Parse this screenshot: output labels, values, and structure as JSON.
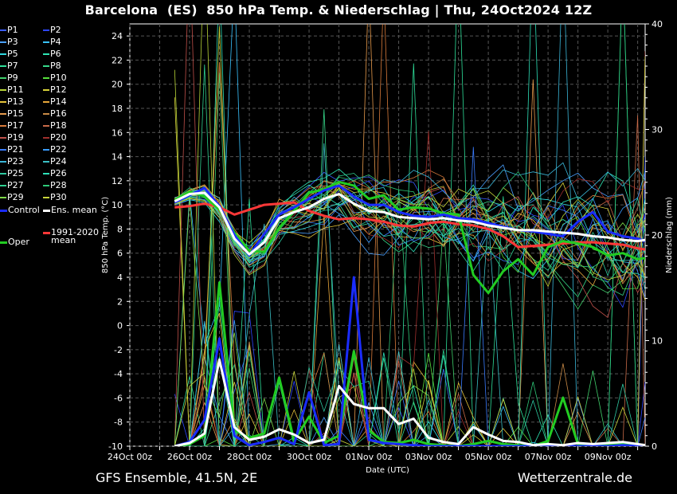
{
  "title": "Barcelona  (ES)  850 hPa Temp. & Niederschlag | Thu, 24Oct2024 12Z",
  "footer_left": "GFS Ensemble, 41.5N, 2E",
  "footer_right": "Wetterzentrale.de",
  "colors": {
    "background": "#000000",
    "grid": "#555555",
    "control": "#1a2cff",
    "ens_mean": "#ffffff",
    "climate_mean": "#ff3838",
    "oper": "#22cc22"
  },
  "legend": {
    "members": [
      {
        "label": "P1",
        "color": "#3a5cff"
      },
      {
        "label": "P2",
        "color": "#2d46ff"
      },
      {
        "label": "P3",
        "color": "#4aa0ff"
      },
      {
        "label": "P4",
        "color": "#39c3ff"
      },
      {
        "label": "P5",
        "color": "#2fd8e0"
      },
      {
        "label": "P6",
        "color": "#2ee6b4"
      },
      {
        "label": "P7",
        "color": "#2ee09a"
      },
      {
        "label": "P8",
        "color": "#36d88a"
      },
      {
        "label": "P9",
        "color": "#3fd06b"
      },
      {
        "label": "P10",
        "color": "#56e03c"
      },
      {
        "label": "P11",
        "color": "#b8d437"
      },
      {
        "label": "P12",
        "color": "#d8d23a"
      },
      {
        "label": "P13",
        "color": "#e6c43a"
      },
      {
        "label": "P14",
        "color": "#e6a63a"
      },
      {
        "label": "P15",
        "color": "#e69a4c"
      },
      {
        "label": "P16",
        "color": "#c98a46"
      },
      {
        "label": "P17",
        "color": "#d87a3a"
      },
      {
        "label": "P18",
        "color": "#c76a48"
      },
      {
        "label": "P19",
        "color": "#c0504a"
      },
      {
        "label": "P20",
        "color": "#a0302e"
      },
      {
        "label": "P21",
        "color": "#3a7cff"
      },
      {
        "label": "P22",
        "color": "#3a9cff"
      },
      {
        "label": "P23",
        "color": "#3ab6d8"
      },
      {
        "label": "P24",
        "color": "#3ac0c6"
      },
      {
        "label": "P25",
        "color": "#2ec8a0"
      },
      {
        "label": "P26",
        "color": "#2ee0b8"
      },
      {
        "label": "P27",
        "color": "#2ed090"
      },
      {
        "label": "P28",
        "color": "#2ec878"
      },
      {
        "label": "P29",
        "color": "#7cd848"
      },
      {
        "label": "P30",
        "color": "#c8d43a"
      }
    ],
    "control_label": "Control",
    "ens_mean_label": "Ens. mean",
    "oper_label": "Oper",
    "climate_label_1": "1991-2020",
    "climate_label_2": "mean"
  },
  "chart_data": {
    "type": "line",
    "xlabel": "Date (UTC)",
    "ylabel": "850 hPa Temp. (°C)",
    "y2label": "Niederschlag (mm)",
    "ylim": [
      -10,
      25
    ],
    "y2lim": [
      0,
      40
    ],
    "yticks": [
      -10,
      -8,
      -6,
      -4,
      -2,
      0,
      2,
      4,
      6,
      8,
      10,
      12,
      14,
      16,
      18,
      20,
      22,
      24
    ],
    "y2ticks": [
      0,
      10,
      20,
      30,
      40
    ],
    "xlim": [
      "2024-10-24 00:00",
      "2024-11-10 06:00"
    ],
    "xticks": [
      "24Oct 00z",
      "26Oct 00z",
      "28Oct 00z",
      "30Oct 00z",
      "01Nov 00z",
      "03Nov 00z",
      "05Nov 00z",
      "07Nov 00z",
      "09Nov 00z"
    ],
    "grid": true,
    "legend_position": "left, outside plot",
    "temperature_series": [
      {
        "name": "Ens. mean",
        "x": [
          "2024-10-25 12:00",
          "2024-10-26 00:00",
          "2024-10-26 12:00",
          "2024-10-27 00:00",
          "2024-10-27 12:00",
          "2024-10-28 00:00",
          "2024-10-28 12:00",
          "2024-10-29 00:00",
          "2024-10-29 12:00",
          "2024-10-30 00:00",
          "2024-10-30 12:00",
          "2024-10-31 00:00",
          "2024-10-31 12:00",
          "2024-11-01 00:00",
          "2024-11-01 12:00",
          "2024-11-02 00:00",
          "2024-11-02 12:00",
          "2024-11-03 00:00",
          "2024-11-03 12:00",
          "2024-11-04 00:00",
          "2024-11-04 12:00",
          "2024-11-05 00:00",
          "2024-11-05 12:00",
          "2024-11-06 00:00",
          "2024-11-06 12:00",
          "2024-11-07 00:00",
          "2024-11-07 12:00",
          "2024-11-08 00:00",
          "2024-11-08 12:00",
          "2024-11-09 00:00",
          "2024-11-09 12:00",
          "2024-11-10 00:00",
          "2024-11-10 06:00"
        ],
        "values": [
          10.3,
          10.9,
          11.0,
          9.8,
          7.2,
          5.9,
          6.9,
          8.9,
          9.4,
          9.8,
          10.5,
          10.9,
          10.1,
          9.5,
          9.4,
          9.0,
          8.9,
          8.8,
          8.9,
          8.7,
          8.6,
          8.3,
          8.1,
          7.9,
          7.9,
          7.8,
          7.7,
          7.6,
          7.4,
          7.3,
          7.1,
          7.0,
          7.1
        ]
      },
      {
        "name": "Control",
        "x": [
          "2024-10-25 12:00",
          "2024-10-26 00:00",
          "2024-10-26 12:00",
          "2024-10-27 00:00",
          "2024-10-27 12:00",
          "2024-10-28 00:00",
          "2024-10-28 12:00",
          "2024-10-29 00:00",
          "2024-10-29 12:00",
          "2024-10-30 00:00",
          "2024-10-30 12:00",
          "2024-10-31 00:00",
          "2024-10-31 12:00",
          "2024-11-01 00:00",
          "2024-11-01 12:00",
          "2024-11-02 00:00",
          "2024-11-02 12:00",
          "2024-11-03 00:00",
          "2024-11-03 12:00",
          "2024-11-04 00:00",
          "2024-11-04 12:00",
          "2024-11-05 00:00",
          "2024-11-05 12:00",
          "2024-11-06 00:00",
          "2024-11-06 12:00",
          "2024-11-07 00:00",
          "2024-11-07 12:00",
          "2024-11-08 00:00",
          "2024-11-08 12:00",
          "2024-11-09 00:00",
          "2024-11-09 12:00",
          "2024-11-10 00:00",
          "2024-11-10 06:00"
        ],
        "values": [
          10.2,
          10.8,
          11.4,
          9.9,
          7.5,
          5.8,
          7.6,
          9.2,
          9.8,
          10.5,
          11.2,
          11.6,
          10.7,
          10.0,
          10.0,
          9.4,
          9.1,
          9.0,
          9.2,
          8.9,
          8.8,
          8.5,
          8.2,
          7.9,
          7.8,
          7.6,
          7.4,
          8.6,
          9.4,
          7.8,
          7.4,
          7.2,
          7.0
        ]
      },
      {
        "name": "Oper",
        "x": [
          "2024-10-25 12:00",
          "2024-10-26 00:00",
          "2024-10-26 12:00",
          "2024-10-27 00:00",
          "2024-10-27 12:00",
          "2024-10-28 00:00",
          "2024-10-28 12:00",
          "2024-10-29 00:00",
          "2024-10-29 12:00",
          "2024-10-30 00:00",
          "2024-10-30 12:00",
          "2024-10-31 00:00",
          "2024-10-31 12:00",
          "2024-11-01 00:00",
          "2024-11-01 12:00",
          "2024-11-02 00:00",
          "2024-11-02 12:00",
          "2024-11-03 00:00",
          "2024-11-03 12:00",
          "2024-11-04 00:00",
          "2024-11-04 12:00",
          "2024-11-05 00:00",
          "2024-11-05 12:00",
          "2024-11-06 00:00",
          "2024-11-06 12:00",
          "2024-11-07 00:00",
          "2024-11-07 12:00",
          "2024-11-08 00:00",
          "2024-11-08 12:00",
          "2024-11-09 00:00",
          "2024-11-09 12:00",
          "2024-11-10 00:00",
          "2024-11-10 06:00"
        ],
        "values": [
          10.4,
          11.1,
          10.7,
          9.6,
          7.7,
          6.2,
          6.1,
          8.1,
          9.5,
          11.0,
          11.3,
          11.9,
          11.6,
          10.5,
          10.8,
          9.6,
          9.8,
          9.7,
          9.3,
          9.2,
          4.2,
          2.7,
          4.5,
          5.5,
          4.2,
          6.5,
          7.0,
          6.8,
          6.5,
          5.8,
          6.0,
          5.5,
          5.6
        ]
      },
      {
        "name": "1991-2020 mean",
        "x": [
          "2024-10-25 12:00",
          "2024-10-26 00:00",
          "2024-10-26 12:00",
          "2024-10-27 00:00",
          "2024-10-27 12:00",
          "2024-10-28 00:00",
          "2024-10-28 12:00",
          "2024-10-29 00:00",
          "2024-10-29 12:00",
          "2024-10-30 00:00",
          "2024-10-30 12:00",
          "2024-10-31 00:00",
          "2024-10-31 12:00",
          "2024-11-01 00:00",
          "2024-11-01 12:00",
          "2024-11-02 00:00",
          "2024-11-02 12:00",
          "2024-11-03 00:00",
          "2024-11-03 12:00",
          "2024-11-04 00:00",
          "2024-11-04 12:00",
          "2024-11-05 00:00",
          "2024-11-05 12:00",
          "2024-11-06 00:00",
          "2024-11-06 12:00",
          "2024-11-07 00:00",
          "2024-11-07 12:00",
          "2024-11-08 00:00",
          "2024-11-08 12:00",
          "2024-11-09 00:00",
          "2024-11-09 12:00",
          "2024-11-10 00:00",
          "2024-11-10 06:00"
        ],
        "values": [
          9.8,
          9.9,
          10.1,
          9.8,
          9.2,
          9.6,
          10.0,
          10.1,
          10.2,
          9.5,
          9.1,
          8.8,
          8.9,
          8.8,
          8.6,
          8.3,
          8.2,
          8.5,
          8.6,
          8.4,
          8.3,
          8.0,
          7.4,
          6.5,
          6.6,
          6.7,
          6.8,
          6.9,
          6.9,
          6.8,
          6.7,
          6.4,
          6.3
        ]
      }
    ],
    "precipitation_series": [
      {
        "name": "Ens. mean",
        "x": [
          "2024-10-25 12:00",
          "2024-10-26 00:00",
          "2024-10-26 12:00",
          "2024-10-27 00:00",
          "2024-10-27 12:00",
          "2024-10-28 00:00",
          "2024-10-28 12:00",
          "2024-10-29 00:00",
          "2024-10-29 12:00",
          "2024-10-30 00:00",
          "2024-10-30 12:00",
          "2024-10-31 00:00",
          "2024-10-31 12:00",
          "2024-11-01 00:00",
          "2024-11-01 12:00",
          "2024-11-02 00:00",
          "2024-11-02 12:00",
          "2024-11-03 00:00",
          "2024-11-03 12:00",
          "2024-11-04 00:00",
          "2024-11-04 12:00",
          "2024-11-05 00:00",
          "2024-11-05 12:00",
          "2024-11-06 00:00",
          "2024-11-06 12:00",
          "2024-11-07 00:00",
          "2024-11-07 12:00",
          "2024-11-08 00:00",
          "2024-11-08 12:00",
          "2024-11-09 00:00",
          "2024-11-09 12:00",
          "2024-11-10 00:00",
          "2024-11-10 06:00"
        ],
        "values": [
          0.0,
          0.3,
          1.2,
          8.2,
          1.8,
          0.6,
          0.9,
          1.6,
          1.1,
          0.3,
          0.6,
          5.7,
          4.0,
          3.6,
          3.6,
          2.1,
          2.6,
          0.8,
          0.4,
          0.2,
          1.8,
          1.1,
          0.5,
          0.4,
          0.1,
          0.2,
          0.1,
          0.3,
          0.2,
          0.3,
          0.4,
          0.2,
          0.1
        ]
      },
      {
        "name": "Control",
        "x": [
          "2024-10-25 12:00",
          "2024-10-26 00:00",
          "2024-10-26 12:00",
          "2024-10-27 00:00",
          "2024-10-27 12:00",
          "2024-10-28 00:00",
          "2024-10-28 12:00",
          "2024-10-29 00:00",
          "2024-10-29 12:00",
          "2024-10-30 00:00",
          "2024-10-30 12:00",
          "2024-10-31 00:00",
          "2024-10-31 12:00",
          "2024-11-01 00:00",
          "2024-11-01 12:00",
          "2024-11-02 00:00",
          "2024-11-02 12:00",
          "2024-11-03 00:00",
          "2024-11-03 12:00",
          "2024-11-04 00:00",
          "2024-11-04 12:00",
          "2024-11-05 00:00",
          "2024-11-05 12:00",
          "2024-11-06 00:00",
          "2024-11-06 12:00",
          "2024-11-07 00:00",
          "2024-11-07 12:00",
          "2024-11-08 00:00",
          "2024-11-08 12:00",
          "2024-11-09 00:00",
          "2024-11-09 12:00",
          "2024-11-10 00:00",
          "2024-11-10 06:00"
        ],
        "values": [
          0.0,
          0.4,
          2.5,
          10.2,
          1.0,
          0.1,
          0.4,
          0.8,
          0.2,
          5.1,
          0.1,
          0.2,
          16.0,
          0.6,
          0.3,
          0.2,
          0.1,
          0.0,
          0.0,
          0.0,
          0.0,
          0.0,
          0.0,
          0.0,
          0.0,
          0.0,
          0.0,
          0.0,
          0.0,
          0.0,
          0.1,
          0.0,
          0.0
        ]
      },
      {
        "name": "Oper",
        "x": [
          "2024-10-25 12:00",
          "2024-10-26 00:00",
          "2024-10-26 12:00",
          "2024-10-27 00:00",
          "2024-10-27 12:00",
          "2024-10-28 00:00",
          "2024-10-28 12:00",
          "2024-10-29 00:00",
          "2024-10-29 12:00",
          "2024-10-30 00:00",
          "2024-10-30 12:00",
          "2024-10-31 00:00",
          "2024-10-31 12:00",
          "2024-11-01 00:00",
          "2024-11-01 12:00",
          "2024-11-02 00:00",
          "2024-11-02 12:00",
          "2024-11-03 00:00",
          "2024-11-03 12:00",
          "2024-11-04 00:00",
          "2024-11-04 12:00",
          "2024-11-05 00:00",
          "2024-11-05 12:00",
          "2024-11-06 00:00",
          "2024-11-06 12:00",
          "2024-11-07 00:00",
          "2024-11-07 12:00",
          "2024-11-08 00:00",
          "2024-11-08 12:00",
          "2024-11-09 00:00",
          "2024-11-09 12:00",
          "2024-11-10 00:00",
          "2024-11-10 06:00"
        ],
        "values": [
          0.0,
          0.2,
          1.0,
          15.5,
          1.5,
          0.8,
          1.2,
          6.5,
          0.5,
          2.8,
          0.3,
          1.0,
          9.0,
          1.5,
          0.4,
          0.3,
          0.6,
          0.2,
          0.1,
          0.0,
          0.2,
          0.5,
          0.2,
          0.1,
          0.0,
          0.5,
          4.6,
          0.2,
          0.0,
          0.1,
          0.2,
          0.0,
          0.0
        ]
      }
    ]
  }
}
